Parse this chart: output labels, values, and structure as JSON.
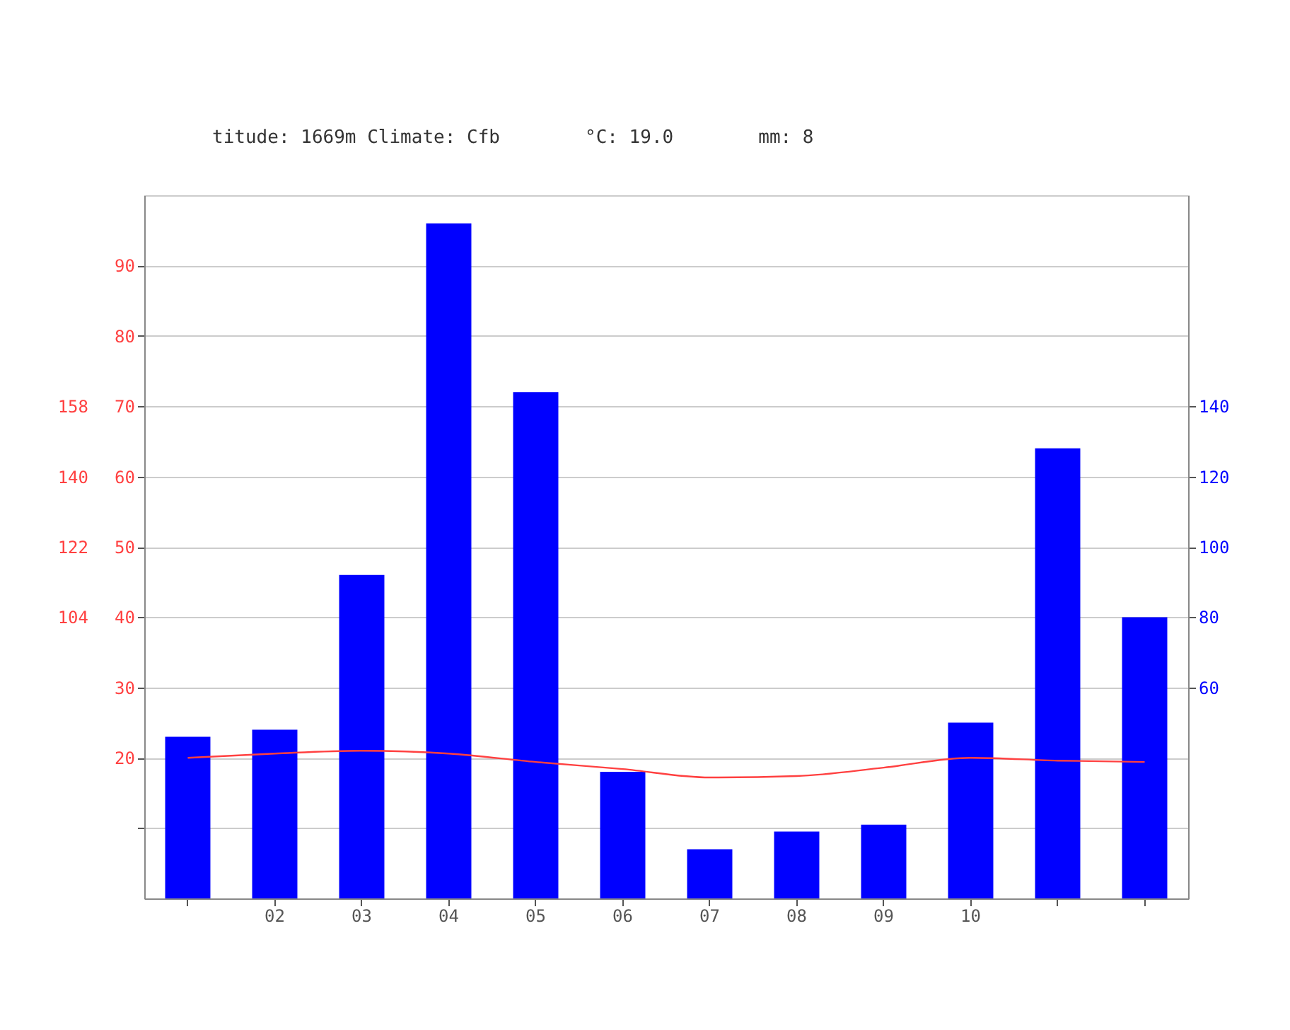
{
  "chart_data": {
    "type": "bar",
    "annotations": [
      "titude: 1669m Climate: Cfb",
      "°C: 19.0",
      "mm: 8"
    ],
    "categories": [
      null,
      "02",
      "03",
      "04",
      "05",
      "06",
      "07",
      "08",
      "09",
      "10",
      null,
      null
    ],
    "series": [
      {
        "axis": "y2",
        "color": "#0000ff",
        "values": [
          46,
          48,
          92,
          192,
          144,
          36,
          14,
          19,
          21,
          50,
          128,
          80
        ]
      },
      {
        "type": "line",
        "axis": "y",
        "color": "#ff4040",
        "values": [
          20.0,
          20.6,
          21.0,
          20.6,
          19.4,
          18.4,
          17.2,
          17.4,
          18.6,
          20.0,
          19.6,
          19.4
        ]
      }
    ],
    "ylim": [
      0,
      100
    ],
    "yticks": [
      {
        "value": 10,
        "label": null
      },
      20,
      30,
      40,
      50,
      60,
      70,
      80,
      90
    ],
    "y2lim": [
      0,
      200
    ],
    "y2ticks": [
      60,
      80,
      100,
      120,
      140
    ],
    "y3lim": [
      32,
      212
    ],
    "y3ticks": [
      104,
      122,
      140,
      158
    ],
    "grid": "y"
  }
}
